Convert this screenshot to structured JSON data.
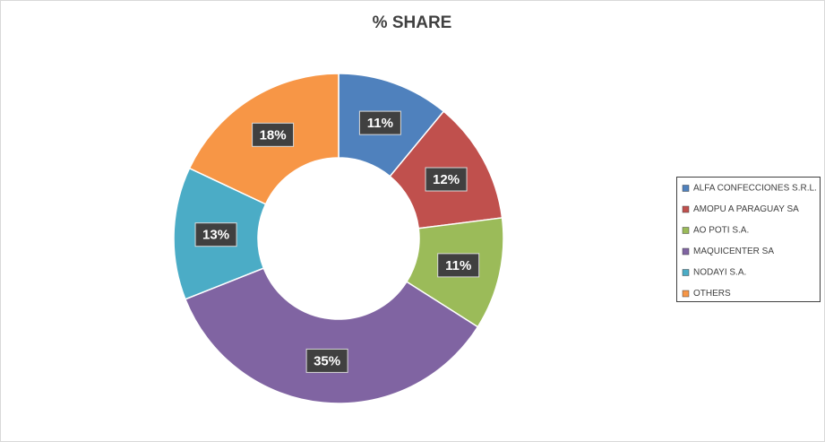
{
  "chart_data": {
    "type": "pie",
    "title": "% SHARE",
    "categories": [
      "ALFA CONFECCIONES S.R.L.",
      "AMOPU A PARAGUAY SA",
      "AO POTI  S.A.",
      "MAQUICENTER SA",
      "NODAYI S.A.",
      "OTHERS"
    ],
    "values": [
      11,
      12,
      11,
      35,
      13,
      18
    ],
    "value_labels": [
      "11%",
      "12%",
      "11%",
      "35%",
      "13%",
      "18%"
    ],
    "colors": [
      "#4f81bd",
      "#c0504d",
      "#9bbb59",
      "#8064a2",
      "#4bacc6",
      "#f79646"
    ],
    "legend": "right"
  }
}
